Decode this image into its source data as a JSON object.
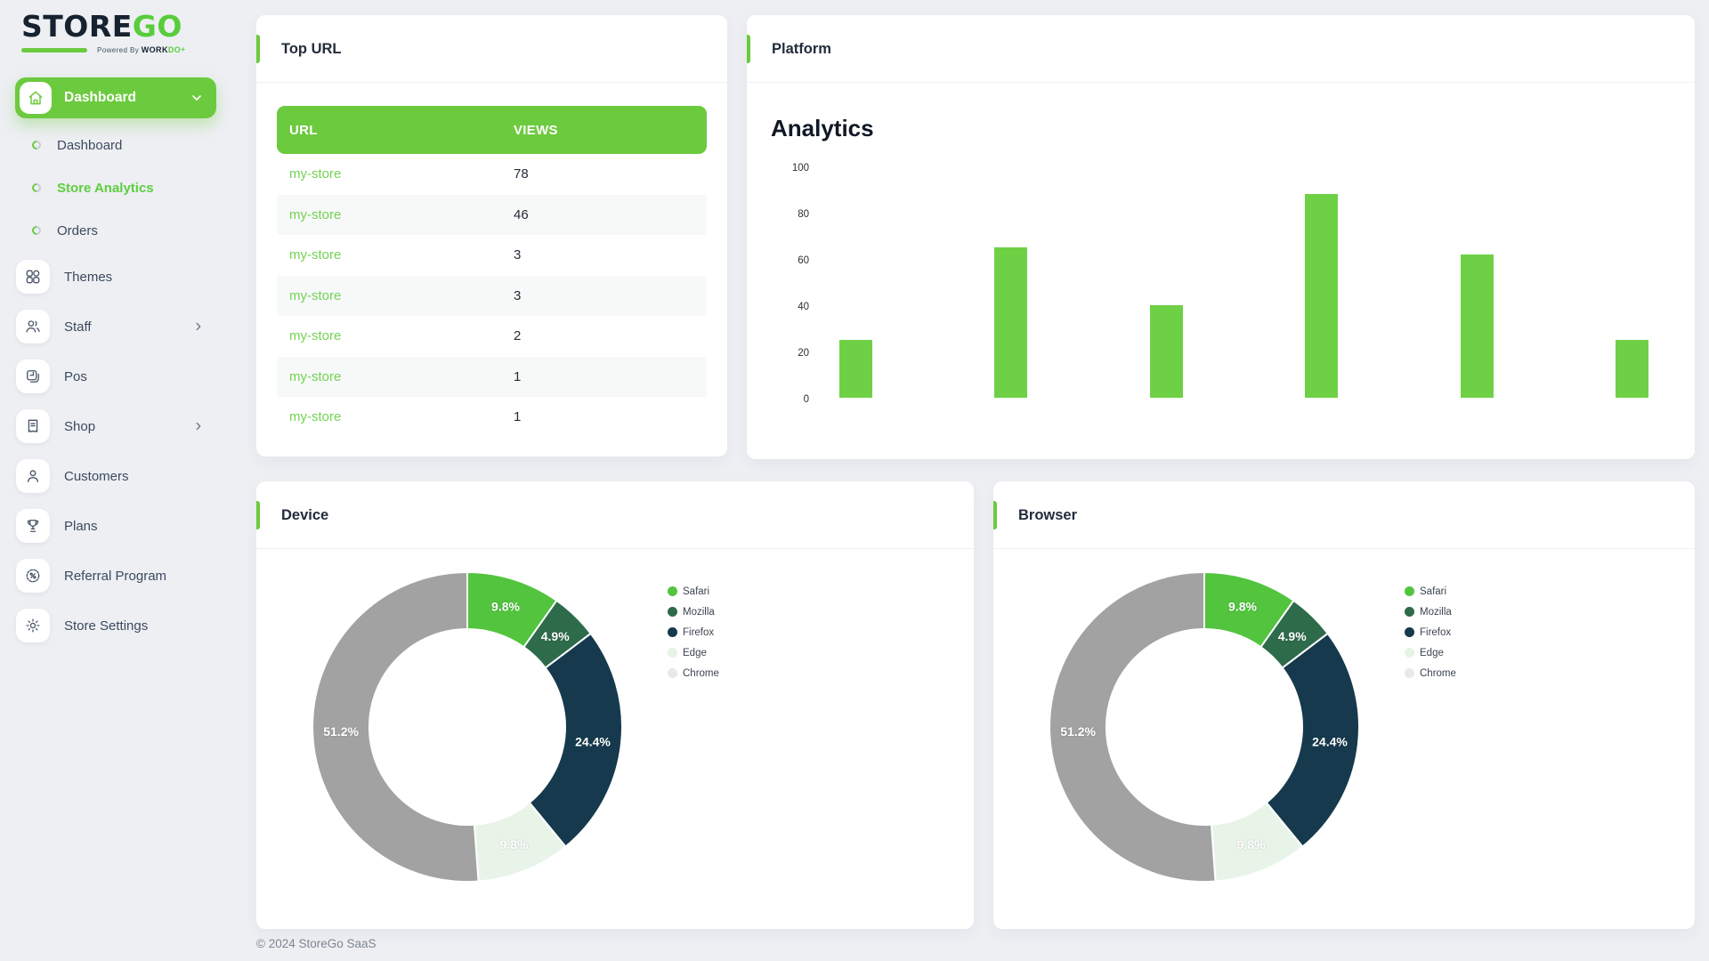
{
  "brand": {
    "logo_primary": "STORE",
    "logo_secondary": "GO",
    "powered_by": "Powered By",
    "powered_brand_primary": "WORK",
    "powered_brand_secondary": "DO"
  },
  "sidebar": {
    "group": {
      "label": "Dashboard"
    },
    "sub_items": [
      {
        "label": "Dashboard",
        "active": false
      },
      {
        "label": "Store Analytics",
        "active": true
      },
      {
        "label": "Orders",
        "active": false
      }
    ],
    "items": [
      {
        "label": "Themes"
      },
      {
        "label": "Staff",
        "has_submenu": true
      },
      {
        "label": "Pos"
      },
      {
        "label": "Shop",
        "has_submenu": true
      },
      {
        "label": "Customers"
      },
      {
        "label": "Plans"
      },
      {
        "label": "Referral Program"
      },
      {
        "label": "Store Settings"
      }
    ]
  },
  "top_url": {
    "title": "Top URL",
    "headers": [
      "URL",
      "VIEWS"
    ],
    "rows": [
      {
        "url": "my-store",
        "views": "78"
      },
      {
        "url": "my-store",
        "views": "46"
      },
      {
        "url": "my-store",
        "views": "3"
      },
      {
        "url": "my-store",
        "views": "3"
      },
      {
        "url": "my-store",
        "views": "2"
      },
      {
        "url": "my-store",
        "views": "1"
      },
      {
        "url": "my-store",
        "views": "1"
      }
    ]
  },
  "platform": {
    "title": "Platform"
  },
  "device": {
    "title": "Device"
  },
  "browser": {
    "title": "Browser"
  },
  "footer": {
    "copyright": "© 2024 StoreGo SaaS"
  },
  "colors": {
    "primary_green": "#6cca3e",
    "bar_green": "#6ed145",
    "link_green": "#74d254",
    "page_background": "#edeff3",
    "card_background": "#ffffff"
  },
  "chart_data": [
    {
      "id": "platform-analytics",
      "type": "bar",
      "title": "Analytics",
      "categories": [
        "",
        "",
        "",
        "",
        "",
        ""
      ],
      "values": [
        25,
        65,
        40,
        88,
        62,
        25
      ],
      "xlabel": "",
      "ylabel": "",
      "ylim": [
        0,
        100
      ],
      "yticks": [
        0,
        20,
        40,
        60,
        80,
        100
      ],
      "bar_color": "#6ed145",
      "grid": false,
      "legend_position": "none"
    },
    {
      "id": "device-donut",
      "type": "pie",
      "donut": true,
      "title": "Device",
      "label_format": "percent",
      "legend_position": "right",
      "segments": [
        {
          "label": "Safari",
          "value": 9.8,
          "color": "#52c43e"
        },
        {
          "label": "Mozilla",
          "value": 4.9,
          "color": "#2e6b4b"
        },
        {
          "label": "Firefox",
          "value": 24.4,
          "color": "#16394d"
        },
        {
          "label": "Edge",
          "value": 9.8,
          "color": "#e9f4e9",
          "legend_color": "#e7f3e4"
        },
        {
          "label": "Chrome",
          "value": 51.2,
          "color": "#a2a2a2",
          "legend_color": "#e9e9e9"
        }
      ]
    },
    {
      "id": "browser-donut",
      "type": "pie",
      "donut": true,
      "title": "Browser",
      "label_format": "percent",
      "legend_position": "right",
      "segments": [
        {
          "label": "Safari",
          "value": 9.8,
          "color": "#52c43e"
        },
        {
          "label": "Mozilla",
          "value": 4.9,
          "color": "#2e6b4b"
        },
        {
          "label": "Firefox",
          "value": 24.4,
          "color": "#16394d"
        },
        {
          "label": "Edge",
          "value": 9.8,
          "color": "#e9f4e9",
          "legend_color": "#e7f3e4"
        },
        {
          "label": "Chrome",
          "value": 51.2,
          "color": "#a2a2a2",
          "legend_color": "#e9e9e9"
        }
      ]
    }
  ]
}
